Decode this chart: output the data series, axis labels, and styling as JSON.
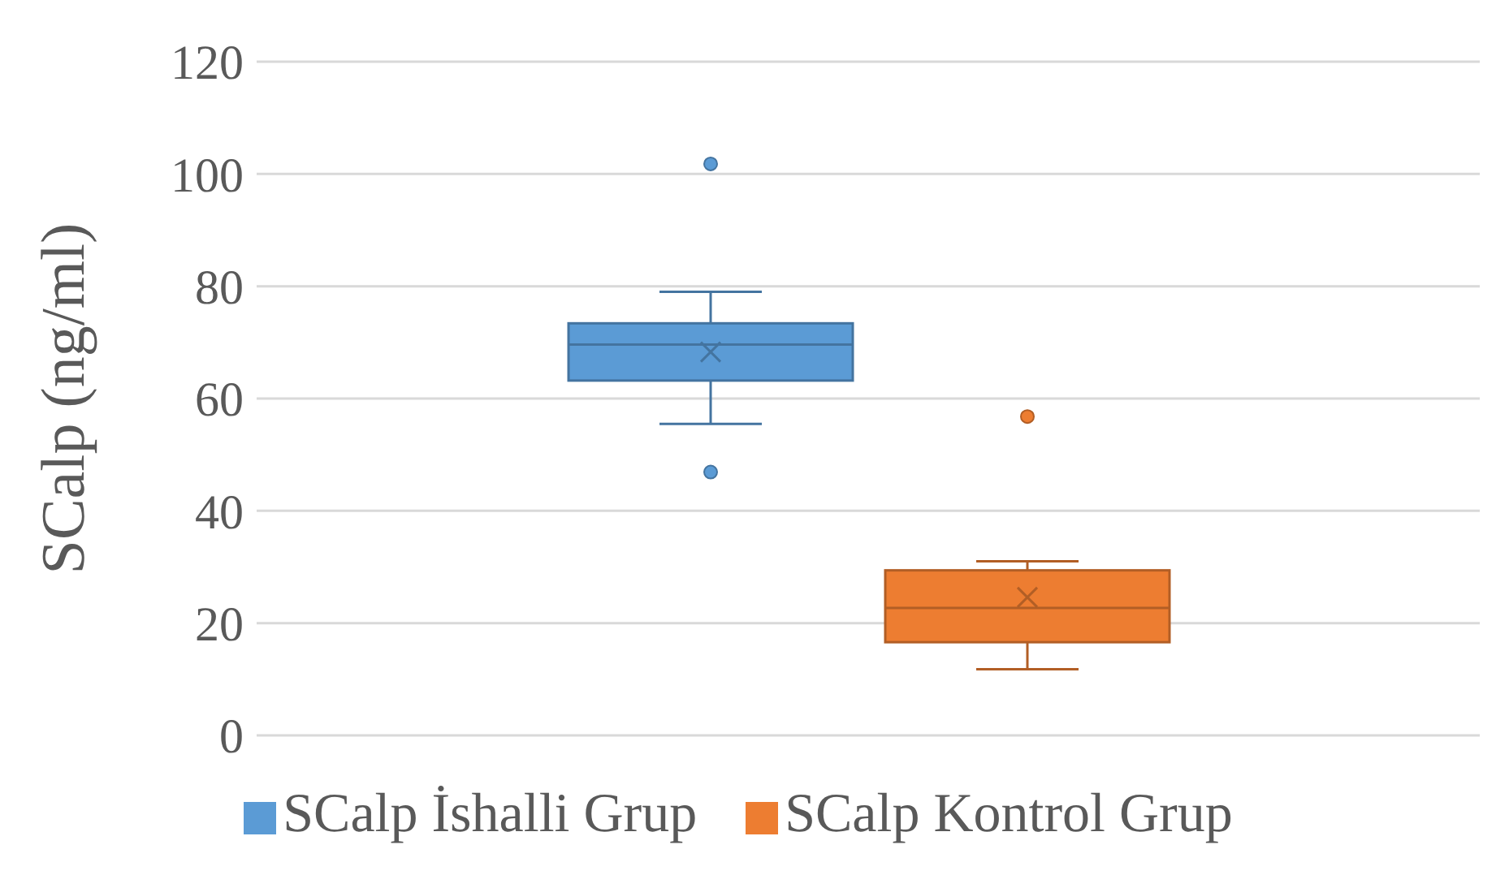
{
  "chart_data": {
    "type": "box",
    "ylabel": "SCalp (ng/ml)",
    "categories": [
      null
    ],
    "series": [
      {
        "name": "SCalp İshalli Grup",
        "color": "#5b9bd5",
        "boxes": [
          {
            "low": 55.5,
            "q1": 63.2,
            "median": 69.6,
            "q3": 73.4,
            "high": 79,
            "mean": 68.3,
            "outliers": [
              101.8,
              46.9
            ]
          }
        ]
      },
      {
        "name": "SCalp Kontrol Grup",
        "color": "#ed7d31",
        "boxes": [
          {
            "low": 11.8,
            "q1": 16.6,
            "median": 22.7,
            "q3": 29.4,
            "high": 31,
            "mean": 24.6,
            "outliers": [
              56.8
            ]
          }
        ]
      }
    ],
    "ylim": [
      0,
      120
    ],
    "yticks": [
      0,
      20,
      40,
      60,
      80,
      100,
      120
    ],
    "grid": "y",
    "legend": "bottom",
    "tick_labels": "y"
  }
}
